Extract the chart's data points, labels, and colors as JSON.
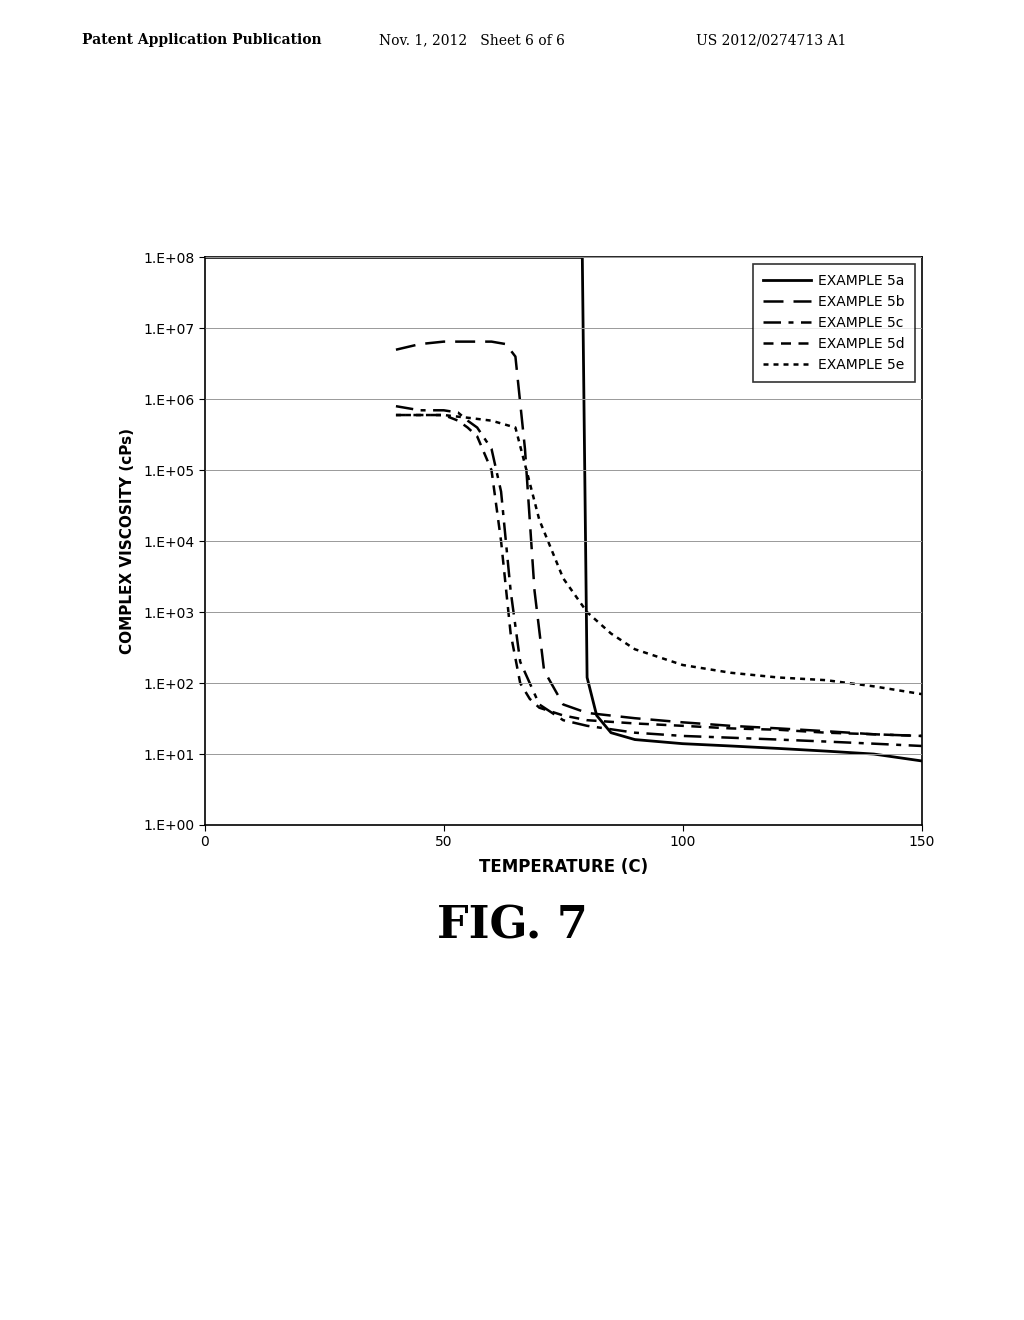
{
  "title": "FIG. 7",
  "xlabel": "TEMPERATURE (C)",
  "ylabel": "COMPLEX VISCOSITY (cPs)",
  "header_left": "Patent Application Publication",
  "header_mid": "Nov. 1, 2012   Sheet 6 of 6",
  "header_right": "US 2012/0274713 A1",
  "xlim": [
    0,
    150
  ],
  "legend_labels": [
    "EXAMPLE 5a",
    "EXAMPLE 5b",
    "EXAMPLE 5c",
    "EXAMPLE 5d",
    "EXAMPLE 5e"
  ],
  "series": {
    "5a": {
      "x": [
        0,
        50,
        60,
        70,
        75,
        78,
        79,
        80,
        82,
        85,
        90,
        100,
        110,
        120,
        130,
        140,
        150
      ],
      "y": [
        100000000.0,
        100000000.0,
        100000000.0,
        100000000.0,
        100000000.0,
        100000000.0,
        100000000.0,
        120.0,
        35.0,
        20.0,
        16.0,
        14.0,
        13.0,
        12.0,
        11.0,
        10.0,
        8.0
      ]
    },
    "5b": {
      "x": [
        40,
        45,
        50,
        55,
        57,
        60,
        63,
        65,
        67,
        69,
        71,
        75,
        80,
        90,
        100,
        110,
        120,
        130,
        140,
        150
      ],
      "y": [
        5000000.0,
        6000000.0,
        6500000.0,
        6500000.0,
        6500000.0,
        6500000.0,
        6000000.0,
        4000000.0,
        200000.0,
        2000.0,
        150.0,
        50.0,
        38.0,
        32.0,
        28.0,
        25.0,
        23.0,
        21.0,
        19.0,
        18.0
      ]
    },
    "5c": {
      "x": [
        40,
        45,
        50,
        53,
        55,
        57,
        60,
        62,
        64,
        66,
        68,
        70,
        75,
        80,
        90,
        100,
        110,
        120,
        130,
        140,
        150
      ],
      "y": [
        800000.0,
        700000.0,
        700000.0,
        650000.0,
        500000.0,
        400000.0,
        200000.0,
        50000.0,
        2000.0,
        200.0,
        100.0,
        50.0,
        30.0,
        25.0,
        20.0,
        18.0,
        17.0,
        16.0,
        15.0,
        14.0,
        13.0
      ]
    },
    "5d": {
      "x": [
        40,
        45,
        50,
        53,
        55,
        57,
        60,
        62,
        64,
        66,
        68,
        70,
        75,
        80,
        90,
        100,
        110,
        120,
        130,
        140,
        150
      ],
      "y": [
        600000.0,
        600000.0,
        600000.0,
        500000.0,
        400000.0,
        300000.0,
        100000.0,
        10000.0,
        500.0,
        100.0,
        60.0,
        45.0,
        35.0,
        30.0,
        27.0,
        25.0,
        23.0,
        22.0,
        20.0,
        19.0,
        18.0
      ]
    },
    "5e": {
      "x": [
        40,
        45,
        50,
        55,
        60,
        65,
        70,
        75,
        80,
        85,
        90,
        100,
        110,
        120,
        130,
        140,
        150
      ],
      "y": [
        600000.0,
        600000.0,
        600000.0,
        550000.0,
        500000.0,
        400000.0,
        20000.0,
        3000.0,
        1000.0,
        500.0,
        300.0,
        180.0,
        140.0,
        120.0,
        110.0,
        90.0,
        70.0
      ]
    }
  },
  "background_color": "#ffffff",
  "plot_bg_color": "#ffffff",
  "grid_color": "#999999",
  "text_color": "#000000"
}
